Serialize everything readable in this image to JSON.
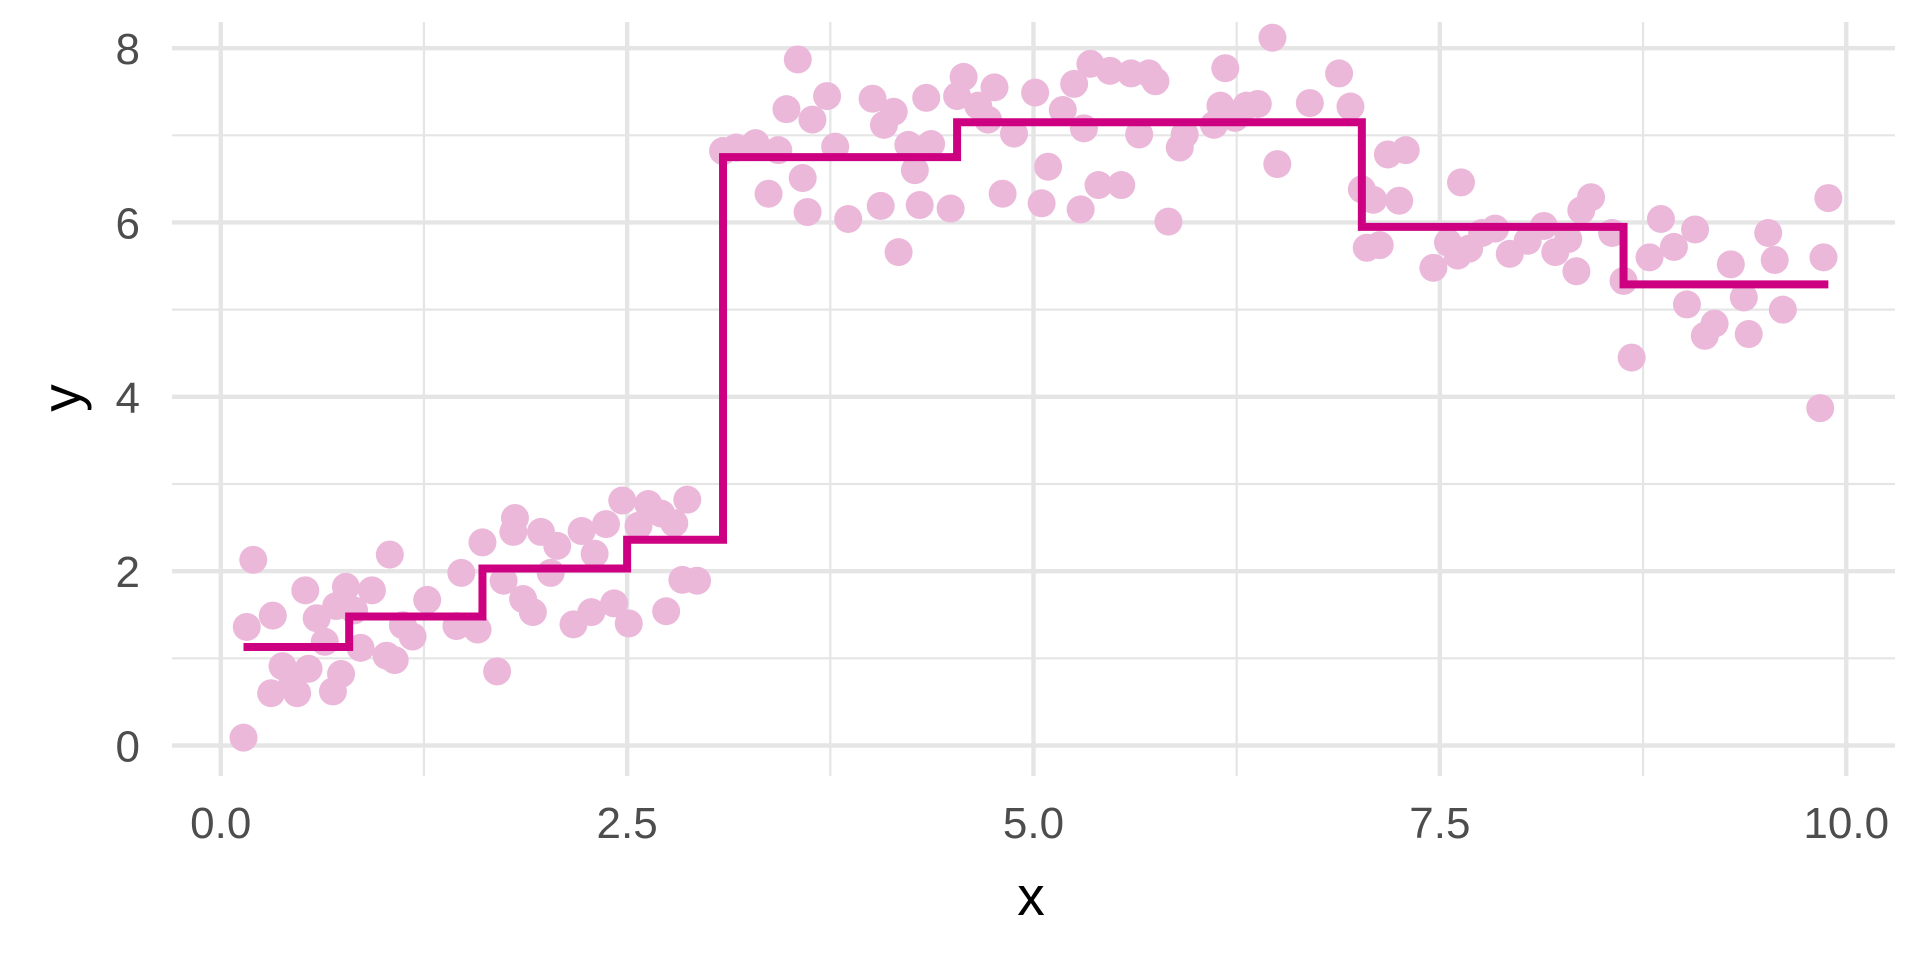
{
  "chart_data": {
    "type": "scatter",
    "title": "",
    "xlabel": "x",
    "ylabel": "y",
    "xlim": [
      -0.3,
      10.3
    ],
    "ylim": [
      -0.35,
      8.3
    ],
    "grid": true,
    "legend": "none",
    "x_ticks": [
      {
        "value": 0.0,
        "label": "0.0"
      },
      {
        "value": 2.5,
        "label": "2.5"
      },
      {
        "value": 5.0,
        "label": "5.0"
      },
      {
        "value": 7.5,
        "label": "7.5"
      },
      {
        "value": 10.0,
        "label": "10.0"
      }
    ],
    "y_ticks": [
      {
        "value": 0,
        "label": "0"
      },
      {
        "value": 2,
        "label": "2"
      },
      {
        "value": 4,
        "label": "4"
      },
      {
        "value": 6,
        "label": "6"
      },
      {
        "value": 8,
        "label": "8"
      }
    ],
    "x_minor": [
      1.25,
      3.75,
      6.25,
      8.75
    ],
    "y_minor": [
      1,
      3,
      5,
      7
    ],
    "colors": {
      "points": "#EBB8DA",
      "step_line": "#CC0080",
      "grid": "#E5E5E5",
      "tick_text": "#4D4D4D",
      "axis_title": "#000000"
    },
    "series": [
      {
        "type": "scatter",
        "points": [
          [
            0.14,
            0.09
          ],
          [
            0.16,
            1.36
          ],
          [
            0.2,
            2.13
          ],
          [
            0.31,
            0.6
          ],
          [
            0.32,
            1.49
          ],
          [
            0.38,
            0.91
          ],
          [
            0.44,
            0.78
          ],
          [
            0.47,
            0.6
          ],
          [
            0.52,
            1.78
          ],
          [
            0.54,
            0.88
          ],
          [
            0.59,
            1.46
          ],
          [
            0.64,
            1.19
          ],
          [
            0.69,
            0.62
          ],
          [
            0.71,
            1.6
          ],
          [
            0.74,
            0.82
          ],
          [
            0.77,
            1.82
          ],
          [
            0.82,
            1.55
          ],
          [
            0.86,
            1.12
          ],
          [
            0.93,
            1.78
          ],
          [
            1.02,
            1.03
          ],
          [
            1.04,
            2.19
          ],
          [
            1.07,
            0.98
          ],
          [
            1.12,
            1.38
          ],
          [
            1.18,
            1.25
          ],
          [
            1.27,
            1.67
          ],
          [
            1.45,
            1.37
          ],
          [
            1.48,
            1.98
          ],
          [
            1.58,
            1.33
          ],
          [
            1.61,
            2.33
          ],
          [
            1.7,
            0.85
          ],
          [
            1.74,
            1.89
          ],
          [
            1.8,
            2.45
          ],
          [
            1.81,
            2.61
          ],
          [
            1.86,
            1.68
          ],
          [
            1.92,
            1.53
          ],
          [
            1.97,
            2.45
          ],
          [
            2.03,
            1.98
          ],
          [
            2.07,
            2.29
          ],
          [
            2.17,
            1.39
          ],
          [
            2.22,
            2.46
          ],
          [
            2.28,
            1.53
          ],
          [
            2.3,
            2.2
          ],
          [
            2.37,
            2.54
          ],
          [
            2.42,
            1.63
          ],
          [
            2.47,
            2.81
          ],
          [
            2.51,
            1.4
          ],
          [
            2.57,
            2.52
          ],
          [
            2.63,
            2.77
          ],
          [
            2.71,
            2.66
          ],
          [
            2.74,
            1.54
          ],
          [
            2.79,
            2.55
          ],
          [
            2.84,
            1.9
          ],
          [
            2.87,
            2.82
          ],
          [
            2.93,
            1.89
          ],
          [
            3.09,
            6.82
          ],
          [
            3.17,
            6.86
          ],
          [
            3.29,
            6.91
          ],
          [
            3.37,
            6.33
          ],
          [
            3.43,
            6.83
          ],
          [
            3.48,
            7.3
          ],
          [
            3.55,
            7.87
          ],
          [
            3.58,
            6.51
          ],
          [
            3.61,
            6.12
          ],
          [
            3.64,
            7.18
          ],
          [
            3.73,
            7.45
          ],
          [
            3.78,
            6.87
          ],
          [
            3.86,
            6.04
          ],
          [
            4.01,
            7.42
          ],
          [
            4.06,
            6.19
          ],
          [
            4.08,
            7.12
          ],
          [
            4.14,
            7.27
          ],
          [
            4.17,
            5.66
          ],
          [
            4.23,
            6.89
          ],
          [
            4.27,
            6.6
          ],
          [
            4.3,
            6.2
          ],
          [
            4.34,
            7.43
          ],
          [
            4.37,
            6.9
          ],
          [
            4.49,
            6.16
          ],
          [
            4.53,
            7.45
          ],
          [
            4.57,
            7.67
          ],
          [
            4.66,
            7.34
          ],
          [
            4.72,
            7.18
          ],
          [
            4.76,
            7.55
          ],
          [
            4.81,
            6.33
          ],
          [
            4.88,
            7.02
          ],
          [
            5.01,
            7.49
          ],
          [
            5.05,
            6.22
          ],
          [
            5.09,
            6.64
          ],
          [
            5.18,
            7.29
          ],
          [
            5.25,
            7.59
          ],
          [
            5.29,
            6.15
          ],
          [
            5.31,
            7.08
          ],
          [
            5.35,
            7.82
          ],
          [
            5.4,
            6.43
          ],
          [
            5.47,
            7.74
          ],
          [
            5.54,
            6.43
          ],
          [
            5.6,
            7.71
          ],
          [
            5.65,
            7.01
          ],
          [
            5.71,
            7.71
          ],
          [
            5.75,
            7.62
          ],
          [
            5.83,
            6.01
          ],
          [
            5.9,
            6.86
          ],
          [
            5.93,
            7.01
          ],
          [
            6.11,
            7.12
          ],
          [
            6.15,
            7.34
          ],
          [
            6.18,
            7.77
          ],
          [
            6.24,
            7.2
          ],
          [
            6.31,
            7.34
          ],
          [
            6.38,
            7.36
          ],
          [
            6.47,
            8.12
          ],
          [
            6.5,
            6.67
          ],
          [
            6.7,
            7.37
          ],
          [
            6.88,
            7.71
          ],
          [
            6.95,
            7.33
          ],
          [
            7.02,
            6.38
          ],
          [
            7.05,
            5.71
          ],
          [
            7.09,
            6.26
          ],
          [
            7.13,
            5.74
          ],
          [
            7.18,
            6.78
          ],
          [
            7.25,
            6.25
          ],
          [
            7.29,
            6.83
          ],
          [
            7.46,
            5.48
          ],
          [
            7.55,
            5.77
          ],
          [
            7.61,
            5.62
          ],
          [
            7.63,
            6.46
          ],
          [
            7.68,
            5.7
          ],
          [
            7.76,
            5.88
          ],
          [
            7.84,
            5.93
          ],
          [
            7.93,
            5.64
          ],
          [
            8.04,
            5.79
          ],
          [
            8.14,
            5.96
          ],
          [
            8.21,
            5.66
          ],
          [
            8.29,
            5.81
          ],
          [
            8.34,
            5.44
          ],
          [
            8.37,
            6.14
          ],
          [
            8.43,
            6.29
          ],
          [
            8.56,
            5.88
          ],
          [
            8.63,
            5.33
          ],
          [
            8.68,
            4.45
          ],
          [
            8.79,
            5.6
          ],
          [
            8.86,
            6.04
          ],
          [
            8.94,
            5.72
          ],
          [
            9.02,
            5.06
          ],
          [
            9.07,
            5.92
          ],
          [
            9.13,
            4.7
          ],
          [
            9.19,
            4.84
          ],
          [
            9.29,
            5.52
          ],
          [
            9.37,
            5.14
          ],
          [
            9.4,
            4.72
          ],
          [
            9.52,
            5.88
          ],
          [
            9.56,
            5.57
          ],
          [
            9.61,
            5.0
          ],
          [
            9.84,
            3.87
          ],
          [
            9.86,
            5.6
          ],
          [
            9.89,
            6.28
          ]
        ]
      },
      {
        "type": "step",
        "segments": [
          {
            "x_start": 0.14,
            "x_end": 0.79,
            "y": 1.13
          },
          {
            "x_start": 0.79,
            "x_end": 1.61,
            "y": 1.48
          },
          {
            "x_start": 1.61,
            "x_end": 2.5,
            "y": 2.03
          },
          {
            "x_start": 2.5,
            "x_end": 3.09,
            "y": 2.36
          },
          {
            "x_start": 3.09,
            "x_end": 4.53,
            "y": 6.75
          },
          {
            "x_start": 4.53,
            "x_end": 7.02,
            "y": 7.15
          },
          {
            "x_start": 7.02,
            "x_end": 8.63,
            "y": 5.95
          },
          {
            "x_start": 8.63,
            "x_end": 9.89,
            "y": 5.29
          }
        ]
      }
    ]
  }
}
